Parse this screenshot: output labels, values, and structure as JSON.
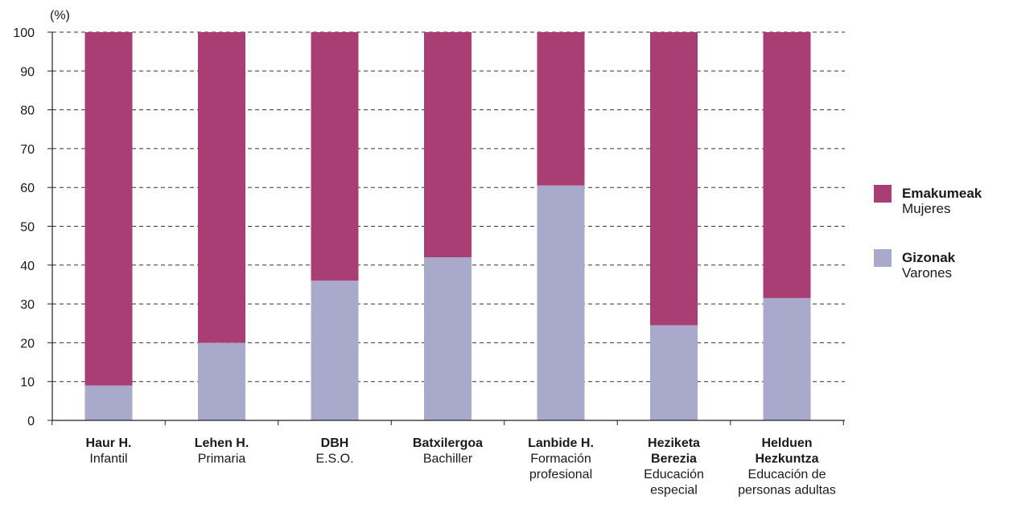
{
  "chart_data": {
    "type": "bar",
    "stacked": true,
    "unit_label": "(%)",
    "ylim": [
      0,
      100
    ],
    "yticks": [
      "0",
      "10",
      "20",
      "30",
      "40",
      "50",
      "60",
      "70",
      "80",
      "90",
      "100"
    ],
    "grid": true,
    "categories": [
      {
        "bold_lines": [
          "Haur H."
        ],
        "lines": [
          "Infantil"
        ]
      },
      {
        "bold_lines": [
          "Lehen H."
        ],
        "lines": [
          "Primaria"
        ]
      },
      {
        "bold_lines": [
          "DBH"
        ],
        "lines": [
          "E.S.O."
        ]
      },
      {
        "bold_lines": [
          "Batxilergoa"
        ],
        "lines": [
          "Bachiller"
        ]
      },
      {
        "bold_lines": [
          "Lanbide H."
        ],
        "lines": [
          "Formación",
          "profesional"
        ]
      },
      {
        "bold_lines": [
          "Heziketa",
          "Berezia"
        ],
        "lines": [
          "Educación",
          "especial"
        ]
      },
      {
        "bold_lines": [
          "Helduen",
          "Hezkuntza"
        ],
        "lines": [
          "Educación de",
          "personas adultas"
        ]
      }
    ],
    "series": [
      {
        "name": "Gizonak",
        "name_secondary": "Varones",
        "color": "#a9a9cc",
        "values": [
          9,
          20,
          36,
          42,
          60.5,
          24.5,
          31.5
        ]
      },
      {
        "name": "Emakumeak",
        "name_secondary": "Mujeres",
        "color": "#a93e74",
        "values": [
          91,
          80,
          64,
          58,
          39.5,
          75.5,
          68.5
        ]
      }
    ],
    "legend_position": "right",
    "legend_order": [
      "Emakumeak",
      "Gizonak"
    ]
  }
}
